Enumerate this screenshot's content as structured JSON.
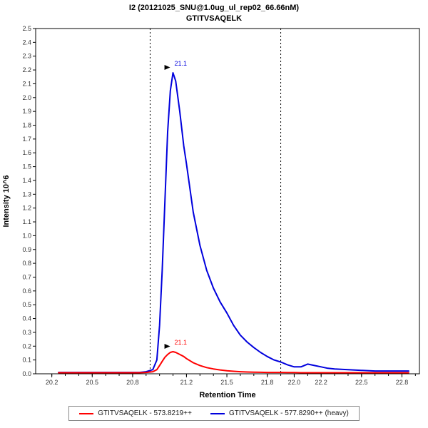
{
  "title": {
    "line1": "I2 (20121025_SNU@1.0ug_ul_rep02_66.66nM)",
    "line2": "GTITVSAQELK"
  },
  "legend": {
    "items": [
      {
        "label": "GTITVSAQELK - 573.8219++",
        "color": "#ff0000"
      },
      {
        "label": "GTITVSAQELK - 577.8290++ (heavy)",
        "color": "#0000dd"
      }
    ]
  },
  "chart_data": {
    "type": "line",
    "title": "I2 (20121025_SNU@1.0ug_ul_rep02_66.66nM)",
    "subtitle": "GTITVSAQELK",
    "xlabel": "Retention Time",
    "ylabel": "Intensity 10^6",
    "xlim": [
      20.08,
      22.93
    ],
    "ylim": [
      0,
      2.5
    ],
    "y_tick_step": 0.1,
    "x_minor_tick_step": 0.1,
    "x_minor_tick_start": 20.2,
    "x_minor_tick_count": 28,
    "x_tick_labels": [
      "20.2",
      "20.5",
      "20.8",
      "21.2",
      "21.5",
      "21.8",
      "22.0",
      "22.2",
      "22.5",
      "22.8"
    ],
    "grid": false,
    "legend_position": "bottom",
    "peak_boundaries": [
      20.93,
      21.9
    ],
    "series": [
      {
        "name": "GTITVSAQELK - 573.8219++",
        "color": "#ff0000",
        "peak_label": "21.1",
        "peak_x": 21.1,
        "peak_y": 0.16,
        "x": [
          20.25,
          20.3,
          20.35,
          20.4,
          20.45,
          20.5,
          20.55,
          20.6,
          20.65,
          20.7,
          20.75,
          20.8,
          20.85,
          20.9,
          20.95,
          20.98,
          21.0,
          21.02,
          21.04,
          21.06,
          21.08,
          21.1,
          21.12,
          21.15,
          21.18,
          21.2,
          21.25,
          21.3,
          21.35,
          21.4,
          21.45,
          21.5,
          21.55,
          21.6,
          21.65,
          21.7,
          21.75,
          21.8,
          21.85,
          21.9,
          21.95,
          22.0,
          22.05,
          22.1,
          22.15,
          22.2,
          22.25,
          22.3,
          22.4,
          22.5,
          22.6,
          22.7,
          22.8,
          22.85
        ],
        "y": [
          0.008,
          0.008,
          0.008,
          0.008,
          0.008,
          0.008,
          0.008,
          0.008,
          0.008,
          0.008,
          0.008,
          0.008,
          0.008,
          0.01,
          0.015,
          0.03,
          0.06,
          0.09,
          0.12,
          0.14,
          0.155,
          0.16,
          0.155,
          0.14,
          0.125,
          0.11,
          0.08,
          0.06,
          0.045,
          0.035,
          0.028,
          0.022,
          0.018,
          0.015,
          0.013,
          0.012,
          0.011,
          0.01,
          0.01,
          0.01,
          0.009,
          0.009,
          0.008,
          0.008,
          0.008,
          0.008,
          0.008,
          0.008,
          0.008,
          0.008,
          0.008,
          0.008,
          0.008,
          0.008
        ]
      },
      {
        "name": "GTITVSAQELK - 577.8290++ (heavy)",
        "color": "#0000dd",
        "peak_label": "21.1",
        "peak_x": 21.1,
        "peak_y": 2.18,
        "x": [
          20.25,
          20.3,
          20.35,
          20.4,
          20.45,
          20.5,
          20.55,
          20.6,
          20.65,
          20.7,
          20.75,
          20.8,
          20.85,
          20.9,
          20.95,
          20.98,
          21.0,
          21.02,
          21.04,
          21.06,
          21.08,
          21.1,
          21.12,
          21.15,
          21.18,
          21.2,
          21.25,
          21.3,
          21.35,
          21.4,
          21.45,
          21.5,
          21.55,
          21.6,
          21.65,
          21.7,
          21.75,
          21.8,
          21.85,
          21.9,
          21.95,
          22.0,
          22.05,
          22.1,
          22.15,
          22.2,
          22.25,
          22.3,
          22.4,
          22.5,
          22.6,
          22.7,
          22.8,
          22.85
        ],
        "y": [
          0.01,
          0.01,
          0.01,
          0.01,
          0.01,
          0.01,
          0.01,
          0.01,
          0.01,
          0.01,
          0.01,
          0.01,
          0.01,
          0.015,
          0.03,
          0.1,
          0.35,
          0.75,
          1.25,
          1.75,
          2.05,
          2.18,
          2.12,
          1.9,
          1.65,
          1.52,
          1.17,
          0.93,
          0.75,
          0.62,
          0.52,
          0.44,
          0.35,
          0.28,
          0.23,
          0.19,
          0.155,
          0.125,
          0.1,
          0.085,
          0.065,
          0.05,
          0.05,
          0.07,
          0.06,
          0.05,
          0.04,
          0.035,
          0.03,
          0.025,
          0.02,
          0.02,
          0.02,
          0.02
        ]
      }
    ]
  }
}
